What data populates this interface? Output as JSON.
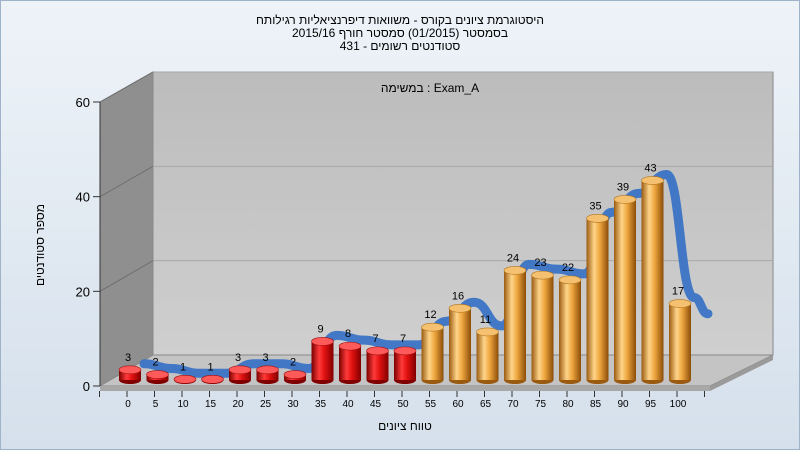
{
  "chart_data": {
    "type": "bar",
    "title_lines": [
      "היסטוגרמת ציונים בקורס - משוואות דיפרנציאליות רגילותח",
      "בסמסטר  (01/2015)  סמסטר חורף 2015/16",
      "431 - סטודנטים רשומים"
    ],
    "task_label": "במשימה : Exam_A",
    "xlabel": "טווח ציונים",
    "ylabel": "מספר סטודנטים",
    "ylim": [
      0,
      60
    ],
    "yticks": [
      0,
      20,
      40,
      60
    ],
    "categories": [
      "0",
      "5",
      "10",
      "15",
      "20",
      "25",
      "30",
      "35",
      "40",
      "45",
      "50",
      "55",
      "60",
      "65",
      "70",
      "75",
      "80",
      "85",
      "90",
      "95",
      "100"
    ],
    "values": [
      3,
      2,
      1,
      1,
      3,
      3,
      2,
      9,
      8,
      7,
      7,
      12,
      16,
      11,
      24,
      23,
      22,
      35,
      39,
      43,
      17
    ],
    "colors": {
      "below_55": "#e01010",
      "from_55": "#eea63e",
      "band": "#3a73c4"
    },
    "grid": true
  }
}
